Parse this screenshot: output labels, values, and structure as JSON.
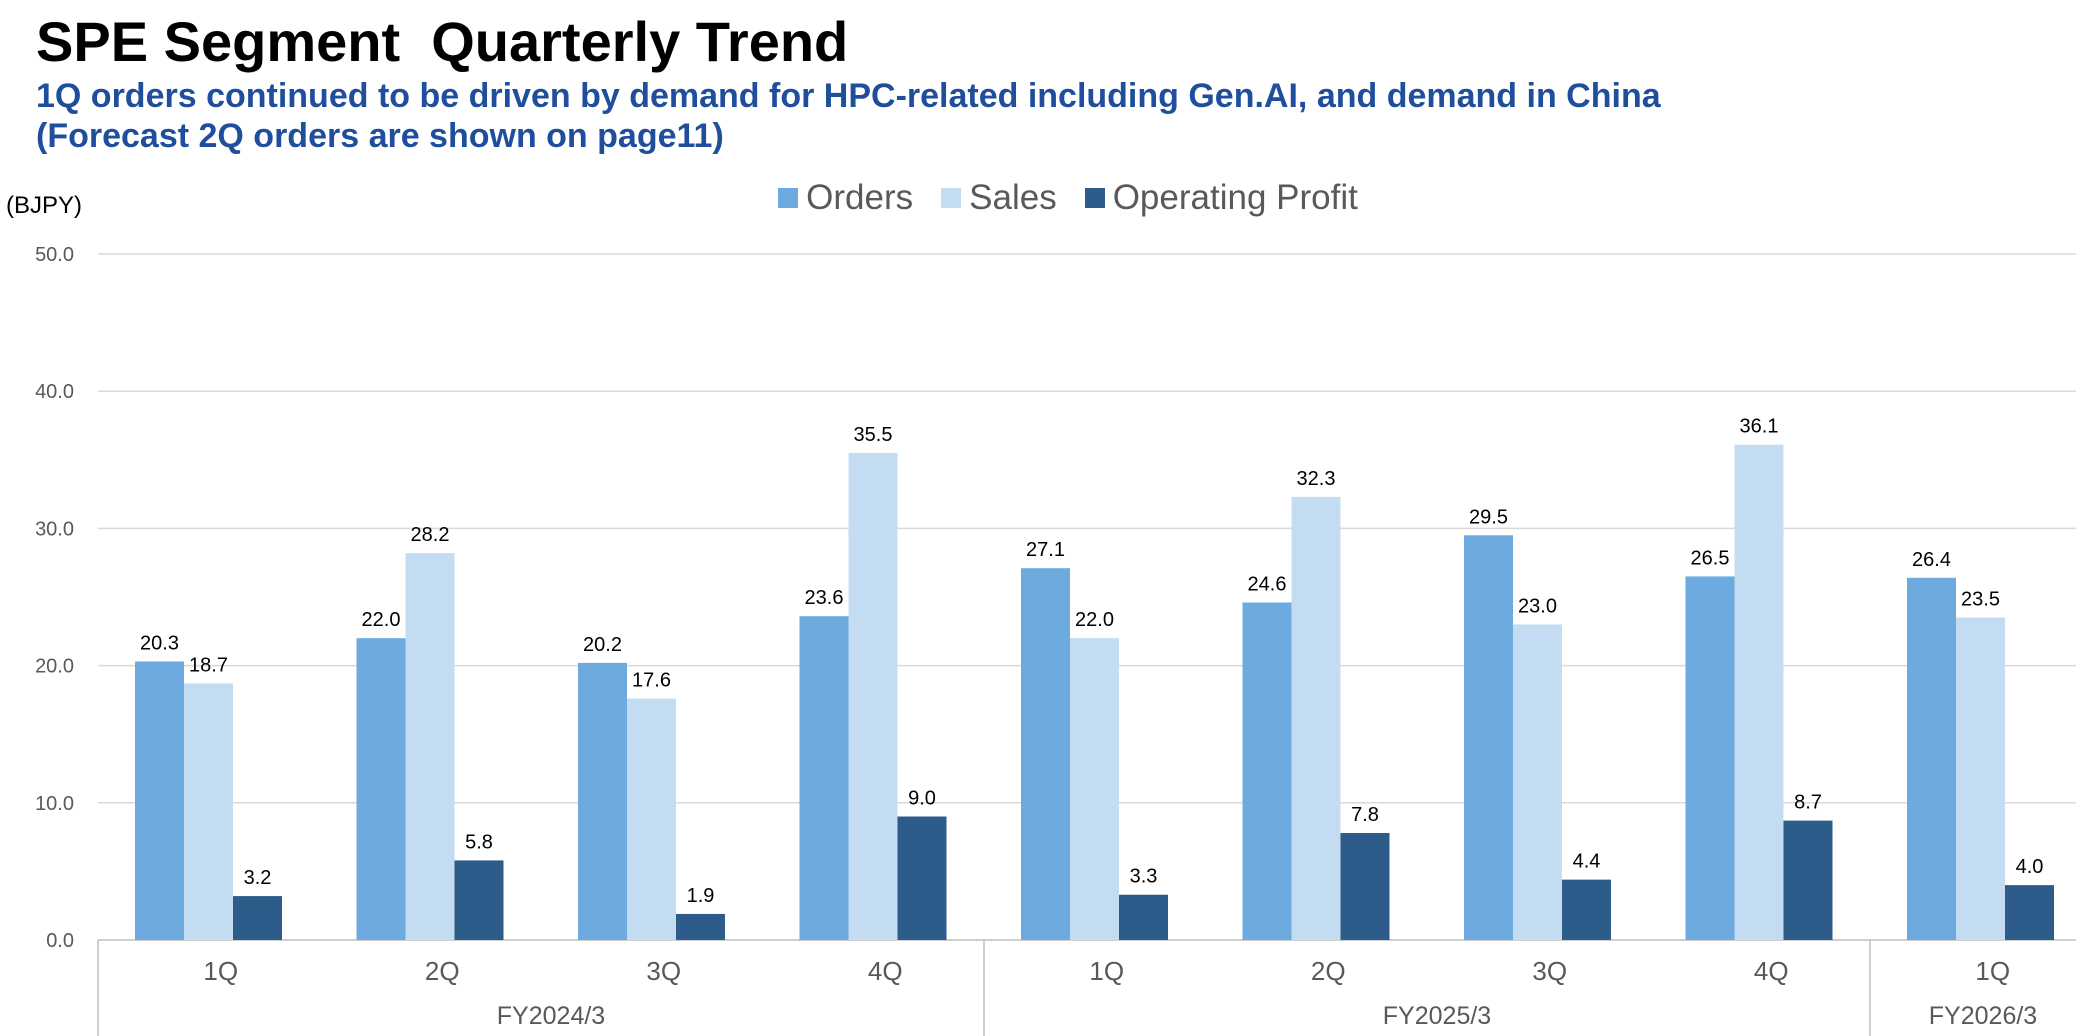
{
  "title": "SPE Segment  Quarterly Trend",
  "subtitle_lines": [
    "1Q orders continued to be driven by demand for HPC-related including Gen.AI, and demand in China",
    "(Forecast 2Q orders are shown on page11)"
  ],
  "unit_label": "(BJPY)",
  "colors": {
    "Orders": "#6caae0",
    "Sales": "#c4dcf2",
    "Operating Profit": "#2d5c8a",
    "grid": "#d9d9d9",
    "axis": "#bfbfbf"
  },
  "chart_data": {
    "type": "bar",
    "title": "SPE Segment  Quarterly Trend",
    "ylabel": "(BJPY)",
    "xlabel": "",
    "ylim": [
      0,
      50
    ],
    "yticks": [
      "0.0",
      "10.0",
      "20.0",
      "30.0",
      "40.0",
      "50.0"
    ],
    "ytick_values": [
      0,
      10,
      20,
      30,
      40,
      50
    ],
    "grid": true,
    "legend_position": "top-center",
    "categories": [
      "1Q",
      "2Q",
      "3Q",
      "4Q",
      "1Q",
      "2Q",
      "3Q",
      "4Q",
      "1Q"
    ],
    "groups": [
      {
        "label": "FY2024/3",
        "count": 4
      },
      {
        "label": "FY2025/3",
        "count": 4
      },
      {
        "label": "FY2026/3",
        "count": 1
      }
    ],
    "series": [
      {
        "name": "Orders",
        "values": [
          20.3,
          22.0,
          20.2,
          23.6,
          27.1,
          24.6,
          29.5,
          26.5,
          26.4
        ],
        "labels": [
          "20.3",
          "22.0",
          "20.2",
          "23.6",
          "27.1",
          "24.6",
          "29.5",
          "26.5",
          "26.4"
        ]
      },
      {
        "name": "Sales",
        "values": [
          18.7,
          28.2,
          17.6,
          35.5,
          22.0,
          32.3,
          23.0,
          36.1,
          23.5
        ],
        "labels": [
          "18.7",
          "28.2",
          "17.6",
          "35.5",
          "22.0",
          "32.3",
          "23.0",
          "36.1",
          "23.5"
        ]
      },
      {
        "name": "Operating Profit",
        "values": [
          3.2,
          5.8,
          1.9,
          9.0,
          3.3,
          7.8,
          4.4,
          8.7,
          4.0
        ],
        "labels": [
          "3.2",
          "5.8",
          "1.9",
          "9.0",
          "3.3",
          "7.8",
          "4.4",
          "8.7",
          "4.0"
        ]
      }
    ]
  }
}
